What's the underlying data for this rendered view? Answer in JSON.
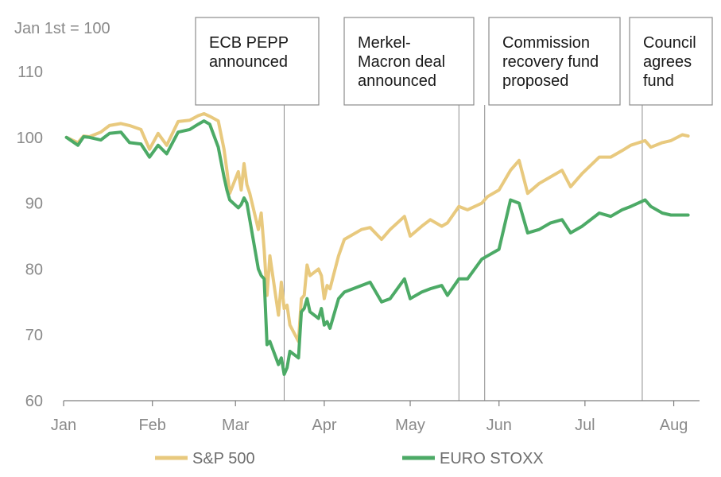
{
  "chart_data": {
    "type": "line",
    "ylabel": "Jan 1st = 100",
    "ylim": [
      60,
      110
    ],
    "yticks": [
      60,
      70,
      80,
      90,
      100,
      110
    ],
    "xlim": [
      "2020-01-01",
      "2020-08-10"
    ],
    "xticks": [
      {
        "label": "Jan",
        "date": "2020-01-01"
      },
      {
        "label": "Feb",
        "date": "2020-02-01"
      },
      {
        "label": "Mar",
        "date": "2020-03-01"
      },
      {
        "label": "Apr",
        "date": "2020-04-01"
      },
      {
        "label": "May",
        "date": "2020-05-01"
      },
      {
        "label": "Jun",
        "date": "2020-06-01"
      },
      {
        "label": "Jul",
        "date": "2020-07-01"
      },
      {
        "label": "Aug",
        "date": "2020-08-01"
      }
    ],
    "grid": false,
    "legend_position": "bottom",
    "series": [
      {
        "name": "S&P 500",
        "color": "#e8c97e",
        "points": [
          [
            "2020-01-02",
            100
          ],
          [
            "2020-01-06",
            99.2
          ],
          [
            "2020-01-08",
            100.2
          ],
          [
            "2020-01-10",
            100.1
          ],
          [
            "2020-01-14",
            100.8
          ],
          [
            "2020-01-17",
            101.8
          ],
          [
            "2020-01-21",
            102.1
          ],
          [
            "2020-01-24",
            101.8
          ],
          [
            "2020-01-28",
            101.2
          ],
          [
            "2020-01-31",
            98.2
          ],
          [
            "2020-02-03",
            100.6
          ],
          [
            "2020-02-06",
            98.8
          ],
          [
            "2020-02-10",
            102.4
          ],
          [
            "2020-02-14",
            102.6
          ],
          [
            "2020-02-17",
            103.3
          ],
          [
            "2020-02-19",
            103.6
          ],
          [
            "2020-02-21",
            103.2
          ],
          [
            "2020-02-24",
            102.5
          ],
          [
            "2020-02-26",
            98.2
          ],
          [
            "2020-02-27",
            95.0
          ],
          [
            "2020-02-28",
            91.5
          ],
          [
            "2020-03-02",
            94.8
          ],
          [
            "2020-03-03",
            92.0
          ],
          [
            "2020-03-04",
            96.0
          ],
          [
            "2020-03-05",
            92.8
          ],
          [
            "2020-03-06",
            91.5
          ],
          [
            "2020-03-09",
            86.0
          ],
          [
            "2020-03-10",
            88.5
          ],
          [
            "2020-03-11",
            83.0
          ],
          [
            "2020-03-12",
            76.0
          ],
          [
            "2020-03-13",
            82.0
          ],
          [
            "2020-03-16",
            73.0
          ],
          [
            "2020-03-17",
            78.0
          ],
          [
            "2020-03-18",
            74.0
          ],
          [
            "2020-03-19",
            74.5
          ],
          [
            "2020-03-20",
            71.5
          ],
          [
            "2020-03-23",
            69.0
          ],
          [
            "2020-03-24",
            75.5
          ],
          [
            "2020-03-25",
            76.0
          ],
          [
            "2020-03-26",
            80.6
          ],
          [
            "2020-03-27",
            79.0
          ],
          [
            "2020-03-30",
            80.0
          ],
          [
            "2020-03-31",
            79.0
          ],
          [
            "2020-04-01",
            75.5
          ],
          [
            "2020-04-02",
            77.5
          ],
          [
            "2020-04-03",
            77.0
          ],
          [
            "2020-04-06",
            82.0
          ],
          [
            "2020-04-08",
            84.5
          ],
          [
            "2020-04-14",
            86.0
          ],
          [
            "2020-04-17",
            86.3
          ],
          [
            "2020-04-21",
            84.5
          ],
          [
            "2020-04-24",
            86.0
          ],
          [
            "2020-04-29",
            88.0
          ],
          [
            "2020-05-01",
            85.0
          ],
          [
            "2020-05-05",
            86.5
          ],
          [
            "2020-05-08",
            87.5
          ],
          [
            "2020-05-12",
            86.5
          ],
          [
            "2020-05-14",
            87.0
          ],
          [
            "2020-05-18",
            89.5
          ],
          [
            "2020-05-21",
            89.0
          ],
          [
            "2020-05-26",
            90.0
          ],
          [
            "2020-05-28",
            91.0
          ],
          [
            "2020-06-01",
            92.0
          ],
          [
            "2020-06-05",
            95.0
          ],
          [
            "2020-06-08",
            96.5
          ],
          [
            "2020-06-11",
            91.5
          ],
          [
            "2020-06-15",
            93.0
          ],
          [
            "2020-06-19",
            94.0
          ],
          [
            "2020-06-23",
            95.0
          ],
          [
            "2020-06-26",
            92.5
          ],
          [
            "2020-06-30",
            94.5
          ],
          [
            "2020-07-06",
            97.0
          ],
          [
            "2020-07-10",
            97.0
          ],
          [
            "2020-07-14",
            98.0
          ],
          [
            "2020-07-17",
            98.8
          ],
          [
            "2020-07-22",
            99.5
          ],
          [
            "2020-07-24",
            98.5
          ],
          [
            "2020-07-28",
            99.2
          ],
          [
            "2020-07-31",
            99.5
          ],
          [
            "2020-08-04",
            100.4
          ],
          [
            "2020-08-06",
            100.2
          ]
        ]
      },
      {
        "name": "EURO STOXX",
        "color": "#4caa66",
        "points": [
          [
            "2020-01-02",
            100
          ],
          [
            "2020-01-06",
            98.8
          ],
          [
            "2020-01-08",
            100.1
          ],
          [
            "2020-01-10",
            100.0
          ],
          [
            "2020-01-14",
            99.6
          ],
          [
            "2020-01-17",
            100.6
          ],
          [
            "2020-01-21",
            100.8
          ],
          [
            "2020-01-24",
            99.2
          ],
          [
            "2020-01-28",
            99.0
          ],
          [
            "2020-01-31",
            97.0
          ],
          [
            "2020-02-03",
            98.8
          ],
          [
            "2020-02-06",
            97.5
          ],
          [
            "2020-02-10",
            100.8
          ],
          [
            "2020-02-14",
            101.2
          ],
          [
            "2020-02-17",
            102.0
          ],
          [
            "2020-02-19",
            102.5
          ],
          [
            "2020-02-21",
            102.0
          ],
          [
            "2020-02-24",
            98.5
          ],
          [
            "2020-02-26",
            94.0
          ],
          [
            "2020-02-27",
            92.0
          ],
          [
            "2020-02-28",
            90.5
          ],
          [
            "2020-03-02",
            89.3
          ],
          [
            "2020-03-03",
            89.8
          ],
          [
            "2020-03-04",
            90.8
          ],
          [
            "2020-03-05",
            90.0
          ],
          [
            "2020-03-06",
            87.5
          ],
          [
            "2020-03-09",
            80.0
          ],
          [
            "2020-03-10",
            79.0
          ],
          [
            "2020-03-11",
            78.5
          ],
          [
            "2020-03-12",
            68.5
          ],
          [
            "2020-03-13",
            69.0
          ],
          [
            "2020-03-16",
            65.5
          ],
          [
            "2020-03-17",
            66.5
          ],
          [
            "2020-03-18",
            64.0
          ],
          [
            "2020-03-19",
            65.0
          ],
          [
            "2020-03-20",
            67.5
          ],
          [
            "2020-03-23",
            66.5
          ],
          [
            "2020-03-24",
            73.5
          ],
          [
            "2020-03-25",
            74.0
          ],
          [
            "2020-03-26",
            75.5
          ],
          [
            "2020-03-27",
            73.5
          ],
          [
            "2020-03-30",
            72.5
          ],
          [
            "2020-03-31",
            74.0
          ],
          [
            "2020-04-01",
            71.5
          ],
          [
            "2020-04-02",
            72.0
          ],
          [
            "2020-04-03",
            71.0
          ],
          [
            "2020-04-06",
            75.5
          ],
          [
            "2020-04-08",
            76.5
          ],
          [
            "2020-04-14",
            77.5
          ],
          [
            "2020-04-17",
            78.0
          ],
          [
            "2020-04-21",
            75.0
          ],
          [
            "2020-04-24",
            75.5
          ],
          [
            "2020-04-29",
            78.5
          ],
          [
            "2020-05-01",
            75.5
          ],
          [
            "2020-05-05",
            76.5
          ],
          [
            "2020-05-08",
            77.0
          ],
          [
            "2020-05-12",
            77.5
          ],
          [
            "2020-05-14",
            76.0
          ],
          [
            "2020-05-18",
            78.5
          ],
          [
            "2020-05-21",
            78.5
          ],
          [
            "2020-05-26",
            81.5
          ],
          [
            "2020-05-28",
            82.0
          ],
          [
            "2020-06-01",
            83.0
          ],
          [
            "2020-06-05",
            90.5
          ],
          [
            "2020-06-08",
            90.0
          ],
          [
            "2020-06-11",
            85.5
          ],
          [
            "2020-06-15",
            86.0
          ],
          [
            "2020-06-19",
            87.0
          ],
          [
            "2020-06-23",
            87.5
          ],
          [
            "2020-06-26",
            85.5
          ],
          [
            "2020-06-30",
            86.5
          ],
          [
            "2020-07-06",
            88.5
          ],
          [
            "2020-07-10",
            88.0
          ],
          [
            "2020-07-14",
            89.0
          ],
          [
            "2020-07-17",
            89.5
          ],
          [
            "2020-07-22",
            90.5
          ],
          [
            "2020-07-24",
            89.5
          ],
          [
            "2020-07-28",
            88.5
          ],
          [
            "2020-07-31",
            88.2
          ],
          [
            "2020-08-04",
            88.2
          ],
          [
            "2020-08-06",
            88.2
          ]
        ]
      }
    ],
    "annotations": [
      {
        "date": "2020-03-18",
        "lines": [
          "ECB PEPP",
          "announced"
        ]
      },
      {
        "date": "2020-05-18",
        "lines": [
          "Merkel-",
          "Macron deal",
          "announced"
        ]
      },
      {
        "date": "2020-05-27",
        "lines": [
          "Commission",
          "recovery fund",
          "proposed"
        ]
      },
      {
        "date": "2020-07-21",
        "lines": [
          "Council",
          "agrees",
          "fund"
        ]
      }
    ]
  }
}
